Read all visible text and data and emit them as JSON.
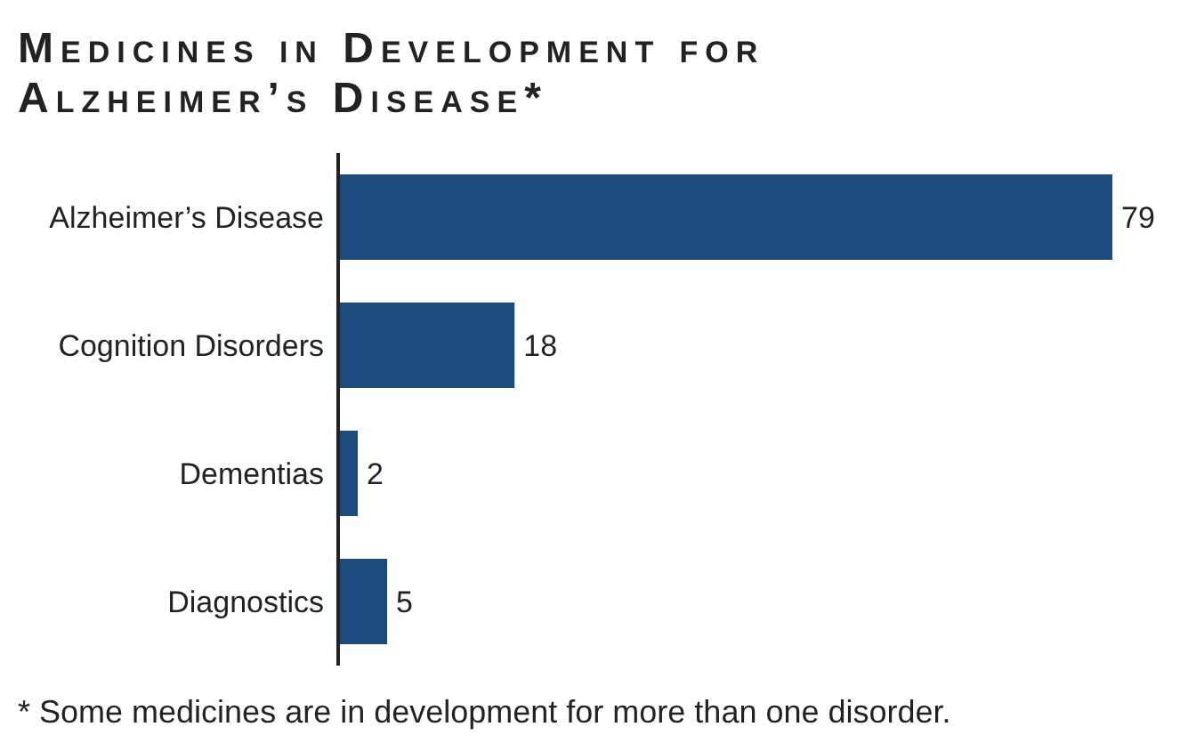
{
  "chart_data": {
    "type": "bar",
    "orientation": "horizontal",
    "title": "Medicines in Development for Alzheimer’s Disease*",
    "categories": [
      "Alzheimer’s Disease",
      "Cognition Disorders",
      "Dementias",
      "Diagnostics"
    ],
    "values": [
      79,
      18,
      2,
      5
    ],
    "color": "#1b4a7c",
    "data_labels": true,
    "annotations": [
      "* Some medicines are in development for more than one disorder."
    ]
  }
}
